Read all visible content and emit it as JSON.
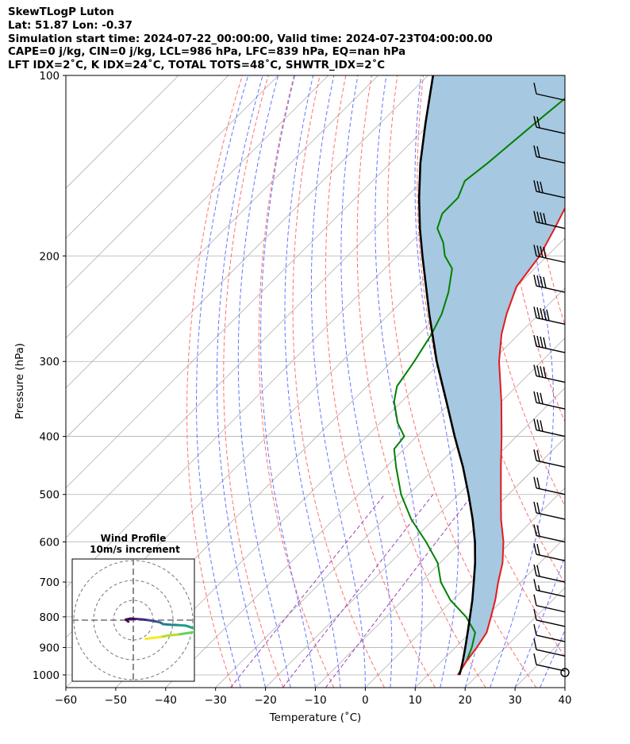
{
  "header": {
    "lines": [
      "SkewTLogP Luton",
      "Lat: 51.87   Lon: -0.37",
      "Simulation start time: 2024-07-22_00:00:00, Valid time: 2024-07-23T04:00:00.00",
      "CAPE=0 j/kg, CIN=0 j/kg, LCL=986 hPa, LFC=839 hPa, EQ=nan hPa",
      "LFT IDX=2˚C, K IDX=24˚C, TOTAL TOTS=48˚C, SHWTR_IDX=2˚C"
    ]
  },
  "chart_data": {
    "type": "skewt-logp",
    "xlabel": "Temperature (˚C)",
    "ylabel": "Pressure (hPa)",
    "xlim": [
      -60,
      40
    ],
    "ylim": [
      1050,
      100
    ],
    "x_ticks": [
      "−60",
      "−50",
      "−40",
      "−30",
      "−20",
      "−10",
      "0",
      "10",
      "20",
      "30",
      "40"
    ],
    "y_ticks": [
      "1000",
      "900",
      "800",
      "700",
      "600",
      "500",
      "400",
      "300",
      "200",
      "100"
    ],
    "y_scale": "log",
    "grid": true,
    "colors": {
      "temperature": "#e41a1c",
      "dewpoint": "#008000",
      "parcel": "#000000",
      "cape_fill": "#a6c8e0",
      "dry_adiabats": "#ff6060",
      "moist_adiabats": "#4a5cff",
      "mixing_ratio": "#9a40b8",
      "isotherms": "#b0b0b0",
      "barbs": "#000000"
    },
    "series": [
      {
        "key": "temperature",
        "pressure": [
          1000,
          950,
          900,
          850,
          800,
          750,
          700,
          650,
          600,
          550,
          500,
          450,
          400,
          350,
          300,
          270,
          250,
          225,
          200,
          180,
          160,
          140,
          120,
          110,
          100
        ],
        "temperature": [
          16.0,
          15.0,
          14.3,
          13.3,
          11.0,
          8.5,
          5.5,
          2.5,
          -1.5,
          -6.5,
          -11.5,
          -17.0,
          -23.0,
          -30.0,
          -38.5,
          -43.5,
          -46.5,
          -50.0,
          -51.5,
          -54.0,
          -57.0,
          -59.0,
          -61.5,
          -61.5,
          -63.0
        ]
      },
      {
        "key": "dewpoint",
        "pressure": [
          1000,
          950,
          900,
          850,
          800,
          750,
          700,
          650,
          600,
          550,
          500,
          450,
          420,
          400,
          380,
          350,
          330,
          300,
          270,
          250,
          230,
          210,
          200,
          190,
          180,
          170,
          160,
          150,
          140,
          120,
          100
        ],
        "temperature": [
          16.0,
          15.0,
          13.3,
          11.0,
          6.0,
          -0.5,
          -6.0,
          -10.5,
          -17.0,
          -24.5,
          -31.5,
          -38.0,
          -42.0,
          -42.5,
          -46.5,
          -51.5,
          -54.0,
          -55.5,
          -57.5,
          -59.5,
          -62.5,
          -66.5,
          -70.5,
          -73.5,
          -77.5,
          -79.5,
          -79.5,
          -81.5,
          -80.5,
          -79.0,
          -77.0
        ]
      },
      {
        "key": "parcel",
        "pressure": [
          1000,
          986,
          950,
          900,
          850,
          800,
          750,
          700,
          650,
          600,
          550,
          500,
          450,
          400,
          350,
          300,
          250,
          200,
          180,
          160,
          140,
          120,
          100
        ],
        "temperature": [
          16.3,
          15.8,
          14.3,
          12.0,
          9.5,
          6.8,
          3.9,
          0.6,
          -3.0,
          -7.2,
          -12.2,
          -18.0,
          -24.6,
          -32.4,
          -41.0,
          -51.0,
          -62.0,
          -75.0,
          -81.0,
          -87.3,
          -94.0,
          -101.0,
          -109.0
        ]
      }
    ],
    "wind_barbs": {
      "pressure": [
        985,
        930,
        880,
        830,
        785,
        740,
        700,
        645,
        600,
        550,
        500,
        450,
        400,
        360,
        325,
        290,
        260,
        230,
        205,
        180,
        160,
        140,
        125,
        110
      ],
      "knots": [
        10,
        10,
        10,
        10,
        10,
        15,
        20,
        20,
        20,
        20,
        20,
        20,
        30,
        30,
        40,
        40,
        50,
        40,
        40,
        40,
        30,
        20,
        20,
        10
      ]
    },
    "inset": {
      "title": "Wind Profile",
      "subtitle": "10m/s increment",
      "rings": 3,
      "hodograph": [
        [
          -1.0,
          -0.3
        ],
        [
          -1.5,
          0.1
        ],
        [
          -0.6,
          0.3
        ],
        [
          0.5,
          0.25
        ],
        [
          1.8,
          0.15
        ],
        [
          3.0,
          0.0
        ],
        [
          4.2,
          -0.2
        ],
        [
          5.0,
          -0.35
        ],
        [
          5.5,
          -0.5
        ],
        [
          6.0,
          -0.8
        ],
        [
          7.0,
          -0.9
        ],
        [
          9.0,
          -1.0
        ],
        [
          10.5,
          -1.1
        ],
        [
          11.2,
          -1.3
        ],
        [
          12.0,
          -1.6
        ],
        [
          12.8,
          -2.0
        ],
        [
          12.4,
          -2.4
        ],
        [
          11.0,
          -2.6
        ],
        [
          9.0,
          -2.9
        ],
        [
          7.0,
          -3.1
        ],
        [
          5.5,
          -3.4
        ],
        [
          3.8,
          -3.6
        ],
        [
          2.5,
          -3.8
        ]
      ]
    }
  }
}
